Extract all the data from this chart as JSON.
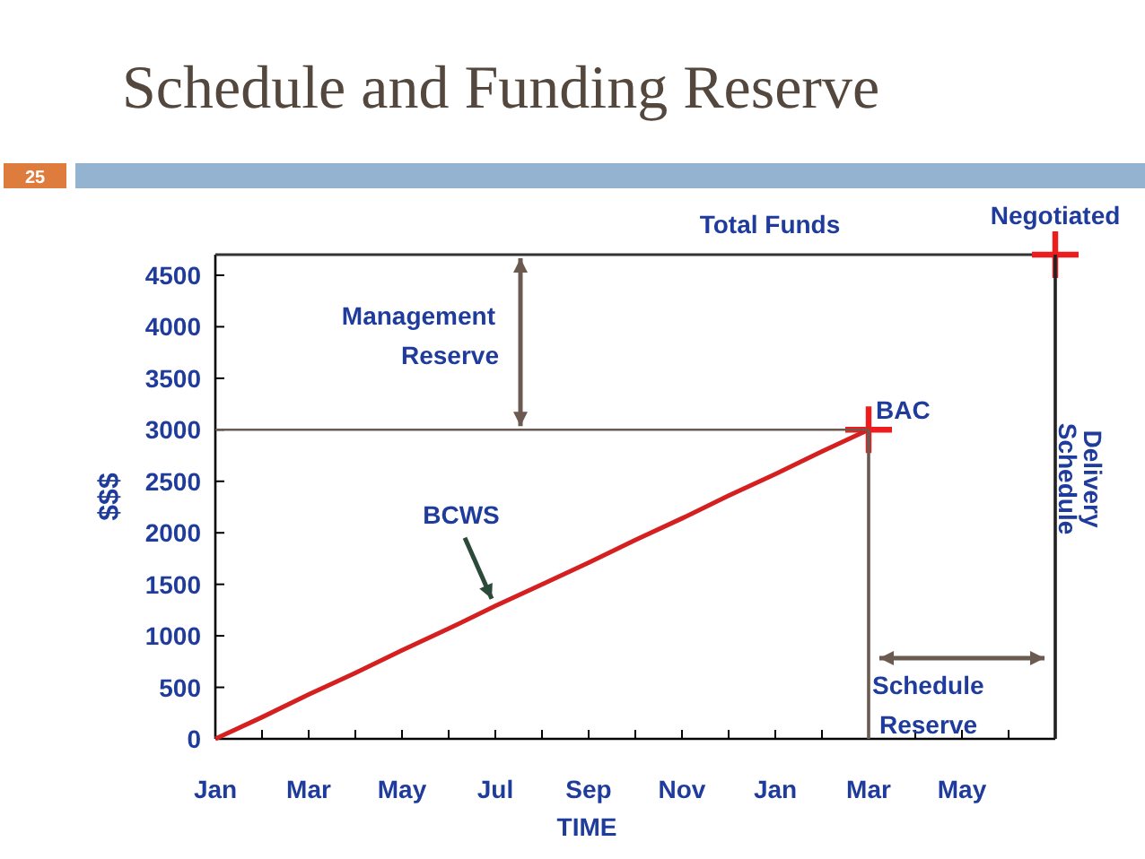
{
  "chart_data": {
    "type": "line",
    "title": "Schedule and Funding Reserve",
    "xlabel": "TIME",
    "ylabel": "$$$",
    "categories": [
      "Jan",
      null,
      "Mar",
      null,
      "May",
      null,
      "Jul",
      null,
      "Sep",
      null,
      "Nov",
      null,
      "Jan",
      null,
      "Mar",
      null,
      "May",
      null,
      null
    ],
    "ylim": [
      0,
      4700
    ],
    "yticks": [
      0,
      500,
      1000,
      1500,
      2000,
      2500,
      3000,
      3500,
      4000,
      4500
    ],
    "series": [
      {
        "name": "BCWS",
        "color": "#d42020",
        "values": [
          0,
          210,
          430,
          640,
          860,
          1070,
          1290,
          1500,
          1710,
          1930,
          2140,
          2360,
          2570,
          2790,
          3000,
          null,
          null,
          null,
          null
        ]
      },
      {
        "color": "#6b5a50",
        "values": [
          3000,
          3000,
          3000,
          3000,
          3000,
          3000,
          3000,
          3000,
          3000,
          3000,
          3000,
          3000,
          3000,
          3000,
          3000,
          null,
          null,
          null,
          null
        ]
      },
      {
        "type": "bar",
        "color": "#6b5a50",
        "values": [
          null,
          null,
          null,
          null,
          null,
          null,
          null,
          null,
          null,
          null,
          null,
          null,
          null,
          null,
          3000,
          null,
          null,
          null,
          null
        ]
      },
      {
        "type": "scatter",
        "name": "BAC",
        "color": "#ee1c1c",
        "marker": "cross",
        "values": [
          null,
          null,
          null,
          null,
          null,
          null,
          null,
          null,
          null,
          null,
          null,
          null,
          null,
          null,
          3000,
          null,
          null,
          null,
          null
        ]
      },
      {
        "type": "scatter",
        "name": "Negotiated",
        "color": "#ee1c1c",
        "marker": "cross",
        "values": [
          null,
          null,
          null,
          null,
          null,
          null,
          null,
          null,
          null,
          null,
          null,
          null,
          null,
          null,
          null,
          null,
          null,
          null,
          4700
        ]
      },
      {
        "type": "bar",
        "name": "Delivery Schedule",
        "color": "#222222",
        "values": [
          null,
          null,
          null,
          null,
          null,
          null,
          null,
          null,
          null,
          null,
          null,
          null,
          null,
          null,
          null,
          null,
          null,
          null,
          4700
        ]
      }
    ],
    "ref_lines": [
      {
        "axis": "y",
        "value": 4700,
        "label": "Total Funds",
        "color": "#333333"
      }
    ],
    "annotations": [
      "25",
      "Management Reserve",
      "Schedule Reserve"
    ]
  }
}
